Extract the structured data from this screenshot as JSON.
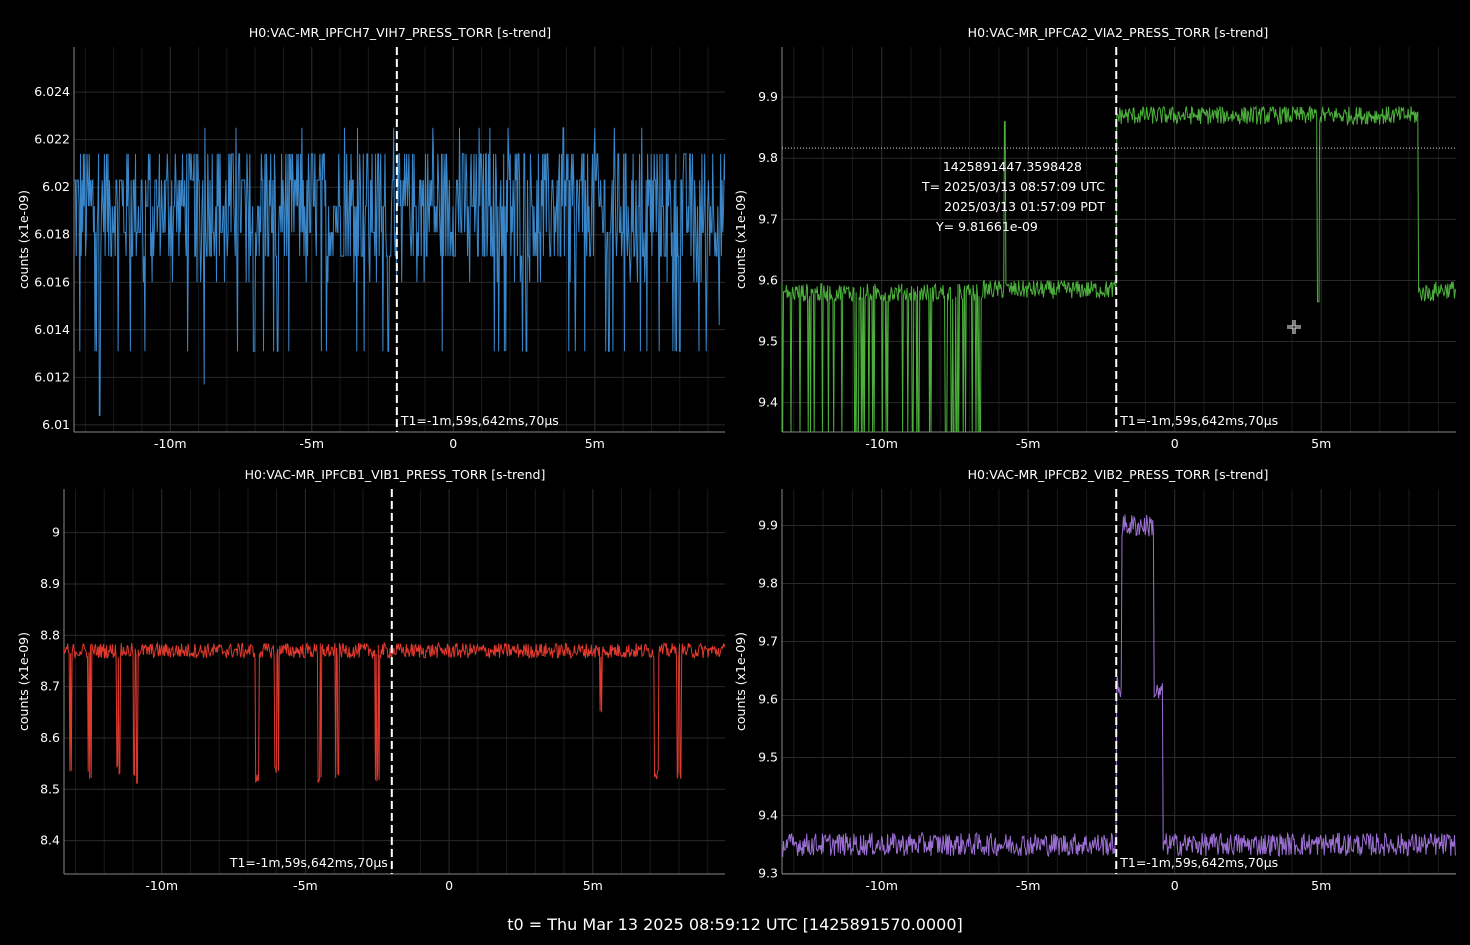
{
  "footer": "t0 = Thu Mar 13 2025 08:59:12 UTC [1425891570.0000]",
  "cursor_t1_label": "T1=-1m,59s,642ms,70µs",
  "chart_data": [
    {
      "type": "line",
      "title": "H0:VAC-MR_IPFCH7_VIH7_PRESS_TORR [s-trend]",
      "ylabel": "counts (x1e-09)",
      "xlabel": "",
      "x_ticks": [
        {
          "value": -10,
          "label": "-10m"
        },
        {
          "value": -5,
          "label": "-5m"
        },
        {
          "value": 0,
          "label": "0"
        },
        {
          "value": 5,
          "label": "5m"
        }
      ],
      "y_ticks": [
        {
          "value": 6.01,
          "label": "6.01"
        },
        {
          "value": 6.012,
          "label": "6.012"
        },
        {
          "value": 6.014,
          "label": "6.014"
        },
        {
          "value": 6.016,
          "label": "6.016"
        },
        {
          "value": 6.018,
          "label": "6.018"
        },
        {
          "value": 6.02,
          "label": "6.02"
        },
        {
          "value": 6.022,
          "label": "6.022"
        },
        {
          "value": 6.024,
          "label": "6.024"
        }
      ],
      "xlim": [
        -13.4,
        9.6
      ],
      "ylim": [
        6.0097,
        6.0259
      ],
      "cursor_x": -1.994,
      "series": [
        {
          "color": "#3a86c8",
          "points": [
            [
              -13.4,
              6.0183
            ],
            [
              -12,
              6.0183
            ],
            [
              -10,
              6.0183
            ],
            [
              -8,
              6.0183
            ],
            [
              -6,
              6.0183
            ],
            [
              -4,
              6.0183
            ],
            [
              -2.5,
              6.0183
            ],
            [
              0,
              6.0183
            ],
            [
              2,
              6.0183
            ],
            [
              4,
              6.0183
            ],
            [
              6,
              6.0183
            ],
            [
              8,
              6.0183
            ],
            [
              9.6,
              6.0183
            ]
          ],
          "band": [
            6.0131,
            6.0225
          ],
          "dips": [
            [
              -13.2,
              6.0131
            ],
            [
              -12.5,
              6.0104
            ],
            [
              -10.9,
              6.0131
            ],
            [
              -8.8,
              6.0117
            ],
            [
              -6.2,
              6.0131
            ],
            [
              -2.3,
              6.0131
            ],
            [
              1.6,
              6.0131
            ],
            [
              5.5,
              6.0131
            ],
            [
              8.0,
              6.0131
            ],
            [
              9.4,
              6.0142
            ]
          ]
        }
      ]
    },
    {
      "type": "line",
      "title": "H0:VAC-MR_IPFCA2_VIA2_PRESS_TORR [s-trend]",
      "ylabel": "counts (x1e-09)",
      "xlabel": "",
      "x_ticks": [
        {
          "value": -10,
          "label": "-10m"
        },
        {
          "value": -5,
          "label": "-5m"
        },
        {
          "value": 0,
          "label": "0"
        },
        {
          "value": 5,
          "label": "5m"
        }
      ],
      "y_ticks": [
        {
          "value": 9.4,
          "label": "9.4"
        },
        {
          "value": 9.5,
          "label": "9.5"
        },
        {
          "value": 9.6,
          "label": "9.6"
        },
        {
          "value": 9.7,
          "label": "9.7"
        },
        {
          "value": 9.8,
          "label": "9.8"
        },
        {
          "value": 9.9,
          "label": "9.9"
        }
      ],
      "xlim": [
        -13.4,
        9.6
      ],
      "ylim": [
        9.352,
        9.982
      ],
      "cursor_x": -1.994,
      "crosshair_y": 9.81661,
      "readout": {
        "gps": "1425891447.3598428",
        "t_utc": "T= 2025/03/13 08:57:09 UTC",
        "t_pdt": "2025/03/13 01:57:09 PDT",
        "y": "Y= 9.81661e-09"
      },
      "series": [
        {
          "color": "#4caf3c",
          "segments": [
            {
              "x0": -13.4,
              "x1": -6.6,
              "level": 9.58,
              "noisy_drops_to": 9.35
            },
            {
              "x0": -6.6,
              "x1": -2.0,
              "level": 9.585
            },
            {
              "x0": -2.0,
              "x1": 8.3,
              "level": 9.87
            },
            {
              "x0": 8.3,
              "x1": 8.9,
              "level": 9.58
            },
            {
              "x0": 8.9,
              "x1": 9.6,
              "level": 9.585
            }
          ],
          "spikes": [
            [
              -5.8,
              9.86
            ],
            [
              4.9,
              9.565
            ]
          ]
        }
      ]
    },
    {
      "type": "line",
      "title": "H0:VAC-MR_IPFCB1_VIB1_PRESS_TORR [s-trend]",
      "ylabel": "counts (x1e-09)",
      "xlabel": "",
      "x_ticks": [
        {
          "value": -10,
          "label": "-10m"
        },
        {
          "value": -5,
          "label": "-5m"
        },
        {
          "value": 0,
          "label": "0"
        },
        {
          "value": 5,
          "label": "5m"
        }
      ],
      "y_ticks": [
        {
          "value": 8.4,
          "label": "8.4"
        },
        {
          "value": 8.5,
          "label": "8.5"
        },
        {
          "value": 8.6,
          "label": "8.6"
        },
        {
          "value": 8.7,
          "label": "8.7"
        },
        {
          "value": 8.8,
          "label": "8.8"
        },
        {
          "value": 8.9,
          "label": "8.9"
        },
        {
          "value": 9,
          "label": "9"
        }
      ],
      "xlim": [
        -13.4,
        9.6
      ],
      "ylim": [
        8.335,
        9.085
      ],
      "cursor_x": -1.994,
      "series": [
        {
          "color": "#e0392e",
          "level": 8.77,
          "dips": [
            [
              -13.2,
              8.52
            ],
            [
              -12.5,
              8.52
            ],
            [
              -11.5,
              8.53
            ],
            [
              -10.9,
              8.51
            ],
            [
              -6.7,
              8.51
            ],
            [
              -6.0,
              8.53
            ],
            [
              -4.5,
              8.51
            ],
            [
              -3.9,
              8.52
            ],
            [
              -2.5,
              8.51
            ],
            [
              5.3,
              8.64
            ],
            [
              7.2,
              8.52
            ],
            [
              8.0,
              8.52
            ]
          ]
        }
      ]
    },
    {
      "type": "line",
      "title": "H0:VAC-MR_IPFCB2_VIB2_PRESS_TORR [s-trend]",
      "ylabel": "counts (x1e-09)",
      "xlabel": "",
      "x_ticks": [
        {
          "value": -10,
          "label": "-10m"
        },
        {
          "value": -5,
          "label": "-5m"
        },
        {
          "value": 0,
          "label": "0"
        },
        {
          "value": 5,
          "label": "5m"
        }
      ],
      "y_ticks": [
        {
          "value": 9.3,
          "label": "9.3"
        },
        {
          "value": 9.4,
          "label": "9.4"
        },
        {
          "value": 9.5,
          "label": "9.5"
        },
        {
          "value": 9.6,
          "label": "9.6"
        },
        {
          "value": 9.7,
          "label": "9.7"
        },
        {
          "value": 9.8,
          "label": "9.8"
        },
        {
          "value": 9.9,
          "label": "9.9"
        }
      ],
      "xlim": [
        -13.4,
        9.6
      ],
      "ylim": [
        9.299,
        9.963
      ],
      "cursor_x": -1.994,
      "series": [
        {
          "color": "#9b6fd1",
          "segments": [
            {
              "x0": -13.4,
              "x1": -2.0,
              "level": 9.35
            },
            {
              "x0": -2.0,
              "x1": -1.8,
              "level": 9.62
            },
            {
              "x0": -1.8,
              "x1": -0.7,
              "level": 9.9
            },
            {
              "x0": -0.7,
              "x1": -0.4,
              "level": 9.61
            },
            {
              "x0": -0.4,
              "x1": 9.6,
              "level": 9.35
            }
          ]
        }
      ]
    }
  ]
}
